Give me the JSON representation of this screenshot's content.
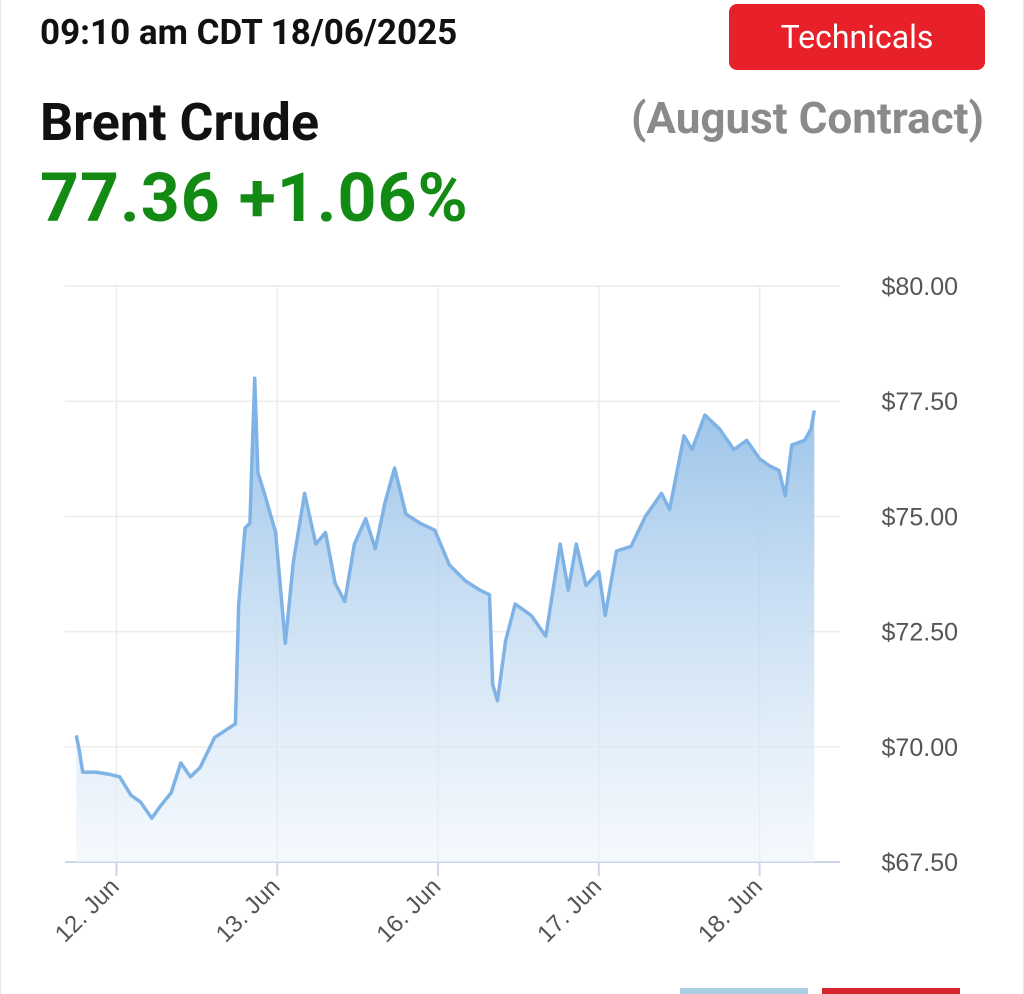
{
  "header": {
    "timestamp": "09:10 am CDT 18/06/2025",
    "button": "Technicals",
    "name": "Brent Crude",
    "contract": "(August Contract)",
    "price": "77.36",
    "change": "+1.06%"
  },
  "chart_data": {
    "type": "area",
    "color": "#7fb3e6",
    "x": [
      -0.25,
      -0.23,
      -0.21,
      -0.13,
      -0.04,
      0.02,
      0.09,
      0.15,
      0.22,
      0.27,
      0.34,
      0.4,
      0.46,
      0.52,
      0.61,
      0.74,
      0.76,
      0.8,
      0.83,
      0.86,
      0.88,
      0.92,
      0.99,
      1.05,
      1.1,
      1.17,
      1.24,
      1.3,
      1.36,
      1.42,
      1.48,
      1.55,
      1.61,
      1.67,
      1.73,
      1.8,
      1.89,
      1.98,
      2.07,
      2.17,
      2.26,
      2.32,
      2.34,
      2.37,
      2.42,
      2.48,
      2.58,
      2.67,
      2.76,
      2.81,
      2.86,
      2.92,
      3.0,
      3.04,
      3.11,
      3.2,
      3.29,
      3.39,
      3.44,
      3.53,
      3.58,
      3.66,
      3.75,
      3.84,
      3.92,
      4.0,
      4.06,
      4.12,
      4.16,
      4.2,
      4.28,
      4.32,
      4.34
    ],
    "values": [
      70.25,
      69.9,
      69.45,
      69.45,
      69.4,
      69.35,
      68.95,
      68.8,
      68.45,
      68.7,
      69.0,
      69.65,
      69.35,
      69.55,
      70.2,
      70.5,
      73.1,
      74.75,
      74.85,
      78.0,
      75.95,
      75.5,
      74.65,
      72.25,
      74.0,
      75.5,
      74.4,
      74.65,
      73.55,
      73.15,
      74.4,
      74.95,
      74.3,
      75.3,
      76.05,
      75.05,
      74.85,
      74.7,
      73.95,
      73.6,
      73.4,
      73.3,
      71.35,
      71.0,
      72.3,
      73.1,
      72.85,
      72.4,
      74.4,
      73.4,
      74.4,
      73.5,
      73.8,
      72.85,
      74.25,
      74.35,
      75.0,
      75.5,
      75.15,
      76.75,
      76.45,
      77.2,
      76.9,
      76.45,
      76.65,
      76.25,
      76.1,
      76.0,
      75.45,
      76.55,
      76.65,
      76.9,
      77.3
    ],
    "xlim": [
      -0.32,
      4.5
    ],
    "xticks": [
      {
        "value": 0,
        "label": "12. Jun"
      },
      {
        "value": 1,
        "label": "13. Jun"
      },
      {
        "value": 2,
        "label": "16. Jun"
      },
      {
        "value": 3,
        "label": "17. Jun"
      },
      {
        "value": 4,
        "label": "18. Jun"
      }
    ],
    "ylim": [
      67.5,
      80
    ],
    "yticks": [
      {
        "value": 67.5,
        "label": "$67.50"
      },
      {
        "value": 70,
        "label": "$70.00"
      },
      {
        "value": 72.5,
        "label": "$72.50"
      },
      {
        "value": 75,
        "label": "$75.00"
      },
      {
        "value": 77.5,
        "label": "$77.50"
      },
      {
        "value": 80,
        "label": "$80.00"
      }
    ],
    "grid": true
  }
}
